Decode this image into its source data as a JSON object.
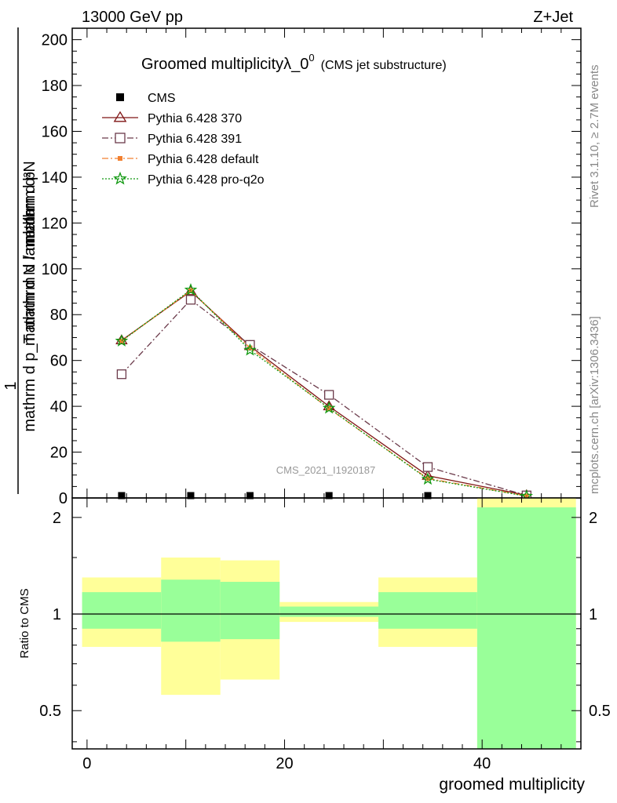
{
  "header": {
    "left": "13000 GeV pp",
    "right": "Z+Jet"
  },
  "side_labels": {
    "rivet": "Rivet 3.1.10, ≥ 2.7M events",
    "mcplots": "mcplots.cern.ch [arXiv:1306.3436]"
  },
  "chart_data": [
    {
      "type": "line",
      "title": "Groomed multiplicityλ_0",
      "title_superscript": "0",
      "subtitle": "(CMS jet substructure)",
      "analysis_label": "CMS_2021_I1920187",
      "ylabel_numerator": "1",
      "ylabel_line1": "mathrm d N / mathrm d p",
      "ylabel_line2": "mathrm d²N",
      "ylabel_line3": "mathrm d p_T mathrm d lambda",
      "ylim": [
        0,
        205
      ],
      "xlim": [
        -1.5,
        50
      ],
      "yticks": [
        0,
        20,
        40,
        60,
        80,
        100,
        120,
        140,
        160,
        180,
        200
      ],
      "ytick_labels": [
        "0",
        "20",
        "40",
        "60",
        "80",
        "100",
        "120",
        "140",
        "160",
        "180",
        "200"
      ],
      "legend_position": "top-left",
      "legend": [
        "CMS",
        "Pythia 6.428 370",
        "Pythia 6.428 391",
        "Pythia 6.428 default",
        "Pythia 6.428 pro-q2o"
      ],
      "series": [
        {
          "name": "CMS",
          "color": "#000000",
          "marker": "square-filled",
          "x": [
            3.5,
            10.5,
            16.5,
            24.5,
            34.5,
            44.5
          ],
          "y": [
            0.4,
            0.4,
            0.4,
            0.4,
            0.4,
            0.4
          ]
        },
        {
          "name": "Pythia 6.428 370",
          "color": "#7f1414",
          "marker": "triangle-open",
          "line": "solid",
          "x": [
            3.5,
            10.5,
            16.5,
            24.5,
            34.5,
            44.5
          ],
          "y": [
            68.8,
            90.2,
            66.3,
            40.0,
            9.7,
            1.2
          ]
        },
        {
          "name": "Pythia 6.428 391",
          "color": "#6b3a4a",
          "marker": "square-open",
          "line": "dashdot",
          "x": [
            3.5,
            10.5,
            16.5,
            24.5,
            34.5,
            44.5
          ],
          "y": [
            54.0,
            86.5,
            66.8,
            45.0,
            13.5,
            1.1
          ]
        },
        {
          "name": "Pythia 6.428 default",
          "color": "#f28030",
          "marker": "square-filled",
          "line": "dashdot",
          "x": [
            3.5,
            10.5,
            16.5,
            24.5,
            34.5,
            44.5
          ],
          "y": [
            68.5,
            90.5,
            65.5,
            39.0,
            8.5,
            0.9
          ]
        },
        {
          "name": "Pythia 6.428 pro-q2o",
          "color": "#119911",
          "marker": "star",
          "line": "dotted",
          "x": [
            3.5,
            10.5,
            16.5,
            24.5,
            34.5,
            44.5
          ],
          "y": [
            68.5,
            90.8,
            64.5,
            39.2,
            8.2,
            0.8
          ]
        }
      ]
    },
    {
      "type": "area",
      "ylabel": "Ratio to CMS",
      "xlabel": "groomed multiplicity",
      "yscale": "log",
      "ylim": [
        0.38,
        2.3
      ],
      "xlim": [
        -1.5,
        50
      ],
      "xticks": [
        0,
        20,
        40
      ],
      "xtick_labels": [
        "0",
        "20",
        "40"
      ],
      "yticks": [
        0.5,
        1,
        2
      ],
      "ytick_labels": [
        "0.5",
        "1",
        "2"
      ],
      "reference_line": 1,
      "band_colors": {
        "outer": "#ffff99",
        "inner": "#99ff99"
      },
      "bins": [
        {
          "xlo": -0.5,
          "xhi": 7.5,
          "outer": [
            0.79,
            1.3
          ],
          "inner": [
            0.9,
            1.17
          ]
        },
        {
          "xlo": 7.5,
          "xhi": 13.5,
          "outer": [
            0.56,
            1.5
          ],
          "inner": [
            0.82,
            1.28
          ]
        },
        {
          "xlo": 13.5,
          "xhi": 19.5,
          "outer": [
            0.625,
            1.47
          ],
          "inner": [
            0.835,
            1.26
          ]
        },
        {
          "xlo": 19.5,
          "xhi": 29.5,
          "outer": [
            0.945,
            1.09
          ],
          "inner": [
            0.98,
            1.055
          ]
        },
        {
          "xlo": 29.5,
          "xhi": 39.5,
          "outer": [
            0.79,
            1.3
          ],
          "inner": [
            0.9,
            1.17
          ]
        },
        {
          "xlo": 39.5,
          "xhi": 49.5,
          "outer": [
            0.38,
            2.3
          ],
          "inner": [
            0.38,
            2.15
          ]
        }
      ]
    }
  ]
}
